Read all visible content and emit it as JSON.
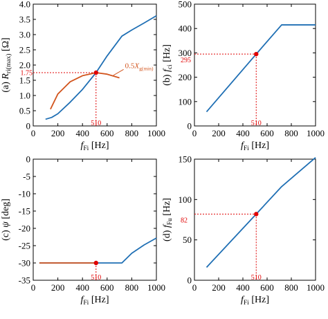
{
  "chart_data": [
    {
      "panel": "a",
      "type": "line",
      "ylabel_prefix": "(a) ",
      "ylabel_sym": "R",
      "ylabel_sub": "ri(max)",
      "ylabel_unit": " [Ω]",
      "xlabel_sym": "f",
      "xlabel_sub": "Fi",
      "xlabel_unit": " [Hz]",
      "xlim": [
        0,
        1000
      ],
      "ylim": [
        0,
        4.0
      ],
      "xticks": [
        0,
        200,
        400,
        600,
        800,
        1000
      ],
      "yticks": [
        "0",
        "0.5",
        "1.0",
        "1.5",
        "2.0",
        "2.5",
        "3.0",
        "3.5",
        "4.0"
      ],
      "series": [
        {
          "color": "#1f6fb4",
          "x": [
            100,
            150,
            200,
            300,
            400,
            510,
            600,
            720,
            800,
            900,
            1000
          ],
          "y": [
            0.22,
            0.28,
            0.4,
            0.78,
            1.2,
            1.75,
            2.3,
            2.95,
            3.15,
            3.38,
            3.62
          ]
        },
        {
          "name_sym": "0.5X",
          "name_sub": "g(min)",
          "color": "#d2551e",
          "x": [
            140,
            200,
            300,
            400,
            510,
            600,
            700
          ],
          "y": [
            0.55,
            1.05,
            1.45,
            1.65,
            1.75,
            1.7,
            1.58
          ]
        }
      ],
      "marker": {
        "x": 510,
        "y": 1.75,
        "xlabel": "510",
        "ylabel": "1.75"
      }
    },
    {
      "panel": "b",
      "type": "line",
      "ylabel_prefix": "(b) ",
      "ylabel_sym": "f",
      "ylabel_sub": "ci",
      "ylabel_unit": " [Hz]",
      "xlabel_sym": "f",
      "xlabel_sub": "Fi",
      "xlabel_unit": " [Hz]",
      "xlim": [
        0,
        1000
      ],
      "ylim": [
        0,
        500
      ],
      "xticks": [
        0,
        200,
        400,
        600,
        800,
        1000
      ],
      "yticks": [
        "0",
        "100",
        "200",
        "300",
        "400",
        "500"
      ],
      "series": [
        {
          "color": "#1f6fb4",
          "x": [
            100,
            510,
            720,
            1000
          ],
          "y": [
            58,
            295,
            415,
            415
          ]
        }
      ],
      "marker": {
        "x": 510,
        "y": 295,
        "xlabel": "510",
        "ylabel": "295"
      }
    },
    {
      "panel": "c",
      "type": "line",
      "ylabel_prefix": "(c) ",
      "ylabel_sym": "ψ",
      "ylabel_sub": "",
      "ylabel_unit": " [deg]",
      "xlabel_sym": "f",
      "xlabel_sub": "Fi",
      "xlabel_unit": " [Hz]",
      "xlim": [
        0,
        1000
      ],
      "ylim": [
        -35,
        0
      ],
      "xticks": [
        0,
        200,
        400,
        600,
        800,
        1000
      ],
      "yticks": [
        "0",
        "-5",
        "-10",
        "-15",
        "-20",
        "-25",
        "-30",
        "-35"
      ],
      "series": [
        {
          "color": "#1f6fb4",
          "x": [
            50,
            720,
            800,
            900,
            1000
          ],
          "y": [
            -30,
            -30,
            -27.2,
            -24.8,
            -22.8
          ]
        },
        {
          "color": "#d2551e",
          "x": [
            50,
            510
          ],
          "y": [
            -30,
            -30
          ]
        }
      ],
      "marker": {
        "x": 510,
        "y": -30,
        "xlabel": "510"
      }
    },
    {
      "panel": "d",
      "type": "line",
      "ylabel_prefix": "(d) ",
      "ylabel_sym": "f",
      "ylabel_sub": "Fu",
      "ylabel_unit": " [Hz]",
      "xlabel_sym": "f",
      "xlabel_sub": "Fi",
      "xlabel_unit": " [Hz]",
      "xlim": [
        0,
        1000
      ],
      "ylim": [
        0,
        150
      ],
      "xticks": [
        0,
        200,
        400,
        600,
        800,
        1000
      ],
      "yticks": [
        "0",
        "50",
        "100",
        "150"
      ],
      "series": [
        {
          "color": "#1f6fb4",
          "x": [
            100,
            510,
            720,
            1000
          ],
          "y": [
            16,
            82,
            116,
            152
          ]
        }
      ],
      "marker": {
        "x": 510,
        "y": 82,
        "xlabel": "510",
        "ylabel": "82"
      }
    }
  ]
}
